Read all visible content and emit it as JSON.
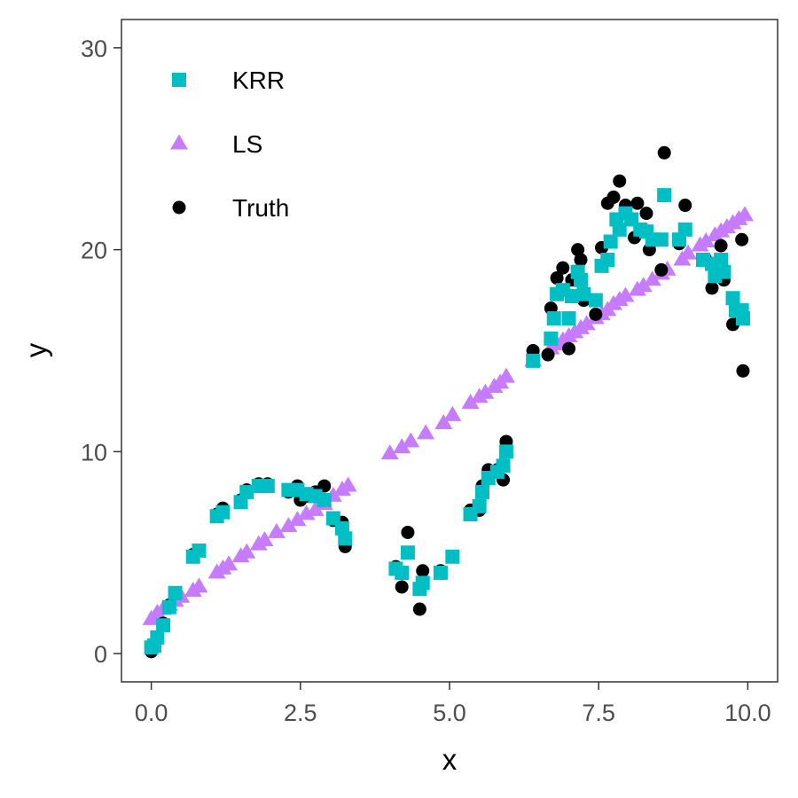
{
  "chart_data": {
    "type": "scatter",
    "title": "",
    "xlabel": "x",
    "ylabel": "y",
    "xlim": [
      -0.5,
      10.5
    ],
    "ylim": [
      -1.4,
      31.4
    ],
    "xticks": [
      0.0,
      2.5,
      5.0,
      7.5,
      10.0
    ],
    "xtick_labels": [
      "0.0",
      "2.5",
      "5.0",
      "7.5",
      "10.0"
    ],
    "yticks": [
      0,
      10,
      20,
      30
    ],
    "ytick_labels": [
      "0",
      "10",
      "20",
      "30"
    ],
    "grid": false,
    "legend": {
      "placement": "top-left",
      "entries": [
        "KRR",
        "LS",
        "Truth"
      ]
    },
    "series": [
      {
        "name": "KRR",
        "marker": "square",
        "color": "#00BFC4",
        "points": [
          [
            0.0,
            0.3
          ],
          [
            0.05,
            0.4
          ],
          [
            0.1,
            0.8
          ],
          [
            0.2,
            1.4
          ],
          [
            0.3,
            2.3
          ],
          [
            0.4,
            3.0
          ],
          [
            0.7,
            4.8
          ],
          [
            0.8,
            5.1
          ],
          [
            1.1,
            6.8
          ],
          [
            1.2,
            7.0
          ],
          [
            1.5,
            7.5
          ],
          [
            1.6,
            8.0
          ],
          [
            1.8,
            8.3
          ],
          [
            1.95,
            8.3
          ],
          [
            2.3,
            8.1
          ],
          [
            2.45,
            8.1
          ],
          [
            2.6,
            7.9
          ],
          [
            2.75,
            7.8
          ],
          [
            2.9,
            7.6
          ],
          [
            3.05,
            6.7
          ],
          [
            3.2,
            6.2
          ],
          [
            3.25,
            5.7
          ],
          [
            4.1,
            4.2
          ],
          [
            4.2,
            4.0
          ],
          [
            4.3,
            5.0
          ],
          [
            4.5,
            3.2
          ],
          [
            4.55,
            3.5
          ],
          [
            4.85,
            4.0
          ],
          [
            5.05,
            4.8
          ],
          [
            5.35,
            6.9
          ],
          [
            5.5,
            7.3
          ],
          [
            5.55,
            8.0
          ],
          [
            5.65,
            8.7
          ],
          [
            5.8,
            9.0
          ],
          [
            5.9,
            9.3
          ],
          [
            5.95,
            10.0
          ],
          [
            6.4,
            14.5
          ],
          [
            6.7,
            15.6
          ],
          [
            6.75,
            16.6
          ],
          [
            6.8,
            17.8
          ],
          [
            6.9,
            18.0
          ],
          [
            7.0,
            16.6
          ],
          [
            7.05,
            17.7
          ],
          [
            7.15,
            18.9
          ],
          [
            7.2,
            18.5
          ],
          [
            7.25,
            17.8
          ],
          [
            7.45,
            17.5
          ],
          [
            7.55,
            19.2
          ],
          [
            7.65,
            19.5
          ],
          [
            7.7,
            20.4
          ],
          [
            7.8,
            21.5
          ],
          [
            7.85,
            21.0
          ],
          [
            7.95,
            21.8
          ],
          [
            8.05,
            21.5
          ],
          [
            8.2,
            21.0
          ],
          [
            8.3,
            20.9
          ],
          [
            8.4,
            20.5
          ],
          [
            8.55,
            20.5
          ],
          [
            8.6,
            22.7
          ],
          [
            8.85,
            20.5
          ],
          [
            8.95,
            21.0
          ],
          [
            9.25,
            19.5
          ],
          [
            9.4,
            19.3
          ],
          [
            9.45,
            18.7
          ],
          [
            9.55,
            19.5
          ],
          [
            9.6,
            18.9
          ],
          [
            9.75,
            17.6
          ],
          [
            9.8,
            17.0
          ],
          [
            9.9,
            17.0
          ],
          [
            9.92,
            16.6
          ]
        ]
      },
      {
        "name": "LS",
        "marker": "triangle",
        "color": "#C77CFF",
        "points": [
          [
            0.0,
            1.7
          ],
          [
            0.1,
            2.0
          ],
          [
            0.2,
            2.2
          ],
          [
            0.3,
            2.4
          ],
          [
            0.4,
            2.6
          ],
          [
            0.5,
            2.8
          ],
          [
            0.7,
            3.1
          ],
          [
            0.8,
            3.3
          ],
          [
            1.1,
            4.0
          ],
          [
            1.2,
            4.2
          ],
          [
            1.3,
            4.4
          ],
          [
            1.5,
            4.8
          ],
          [
            1.6,
            5.0
          ],
          [
            1.8,
            5.4
          ],
          [
            1.9,
            5.6
          ],
          [
            2.1,
            6.0
          ],
          [
            2.3,
            6.3
          ],
          [
            2.45,
            6.6
          ],
          [
            2.6,
            6.9
          ],
          [
            2.75,
            7.1
          ],
          [
            2.9,
            7.4
          ],
          [
            3.05,
            7.8
          ],
          [
            3.2,
            8.1
          ],
          [
            3.3,
            8.3
          ],
          [
            4.0,
            9.9
          ],
          [
            4.2,
            10.2
          ],
          [
            4.35,
            10.5
          ],
          [
            4.6,
            10.9
          ],
          [
            4.9,
            11.4
          ],
          [
            5.05,
            11.8
          ],
          [
            5.35,
            12.4
          ],
          [
            5.5,
            12.7
          ],
          [
            5.6,
            12.9
          ],
          [
            5.75,
            13.2
          ],
          [
            5.85,
            13.4
          ],
          [
            5.95,
            13.7
          ],
          [
            6.4,
            14.5
          ],
          [
            6.7,
            15.1
          ],
          [
            6.8,
            15.3
          ],
          [
            6.9,
            15.5
          ],
          [
            7.0,
            15.7
          ],
          [
            7.1,
            15.9
          ],
          [
            7.2,
            16.1
          ],
          [
            7.3,
            16.3
          ],
          [
            7.45,
            16.6
          ],
          [
            7.55,
            16.8
          ],
          [
            7.65,
            17.0
          ],
          [
            7.75,
            17.3
          ],
          [
            7.85,
            17.5
          ],
          [
            7.95,
            17.7
          ],
          [
            8.15,
            18.0
          ],
          [
            8.25,
            18.2
          ],
          [
            8.4,
            18.5
          ],
          [
            8.55,
            18.8
          ],
          [
            8.65,
            19.0
          ],
          [
            8.9,
            19.5
          ],
          [
            9.0,
            19.8
          ],
          [
            9.2,
            20.2
          ],
          [
            9.3,
            20.4
          ],
          [
            9.45,
            20.7
          ],
          [
            9.55,
            20.9
          ],
          [
            9.65,
            21.1
          ],
          [
            9.75,
            21.3
          ],
          [
            9.85,
            21.5
          ],
          [
            9.95,
            21.7
          ]
        ]
      },
      {
        "name": "Truth",
        "marker": "circle",
        "color": "#000000",
        "points": [
          [
            0.0,
            0.1
          ],
          [
            0.05,
            0.4
          ],
          [
            0.1,
            0.8
          ],
          [
            0.2,
            1.5
          ],
          [
            0.3,
            2.4
          ],
          [
            0.4,
            3.0
          ],
          [
            0.7,
            4.9
          ],
          [
            0.8,
            5.1
          ],
          [
            1.1,
            6.9
          ],
          [
            1.2,
            7.2
          ],
          [
            1.5,
            7.6
          ],
          [
            1.6,
            8.1
          ],
          [
            1.8,
            8.4
          ],
          [
            1.95,
            8.4
          ],
          [
            2.3,
            8.0
          ],
          [
            2.45,
            8.3
          ],
          [
            2.5,
            7.6
          ],
          [
            2.6,
            7.8
          ],
          [
            2.75,
            8.0
          ],
          [
            2.9,
            8.3
          ],
          [
            3.05,
            6.6
          ],
          [
            3.2,
            6.5
          ],
          [
            3.25,
            5.3
          ],
          [
            4.1,
            4.3
          ],
          [
            4.2,
            3.3
          ],
          [
            4.3,
            6.0
          ],
          [
            4.5,
            2.2
          ],
          [
            4.55,
            4.1
          ],
          [
            4.85,
            4.1
          ],
          [
            5.05,
            4.8
          ],
          [
            5.35,
            7.1
          ],
          [
            5.5,
            7.1
          ],
          [
            5.55,
            8.3
          ],
          [
            5.65,
            9.1
          ],
          [
            5.8,
            9.1
          ],
          [
            5.9,
            8.6
          ],
          [
            5.95,
            10.5
          ],
          [
            6.4,
            15.0
          ],
          [
            6.65,
            14.8
          ],
          [
            6.7,
            17.1
          ],
          [
            6.8,
            18.6
          ],
          [
            6.9,
            19.1
          ],
          [
            7.0,
            15.1
          ],
          [
            7.05,
            18.5
          ],
          [
            7.15,
            20.0
          ],
          [
            7.2,
            19.5
          ],
          [
            7.25,
            17.5
          ],
          [
            7.45,
            16.8
          ],
          [
            7.55,
            20.1
          ],
          [
            7.65,
            22.3
          ],
          [
            7.75,
            22.6
          ],
          [
            7.85,
            23.4
          ],
          [
            7.95,
            22.2
          ],
          [
            8.1,
            20.6
          ],
          [
            8.15,
            22.3
          ],
          [
            8.3,
            21.8
          ],
          [
            8.35,
            20.0
          ],
          [
            8.45,
            20.5
          ],
          [
            8.55,
            19.0
          ],
          [
            8.6,
            24.8
          ],
          [
            8.85,
            20.3
          ],
          [
            8.95,
            22.2
          ],
          [
            9.3,
            19.5
          ],
          [
            9.4,
            18.1
          ],
          [
            9.5,
            19.0
          ],
          [
            9.55,
            20.2
          ],
          [
            9.6,
            18.5
          ],
          [
            9.75,
            16.3
          ],
          [
            9.85,
            16.9
          ],
          [
            9.9,
            20.5
          ],
          [
            9.92,
            14.0
          ]
        ]
      }
    ]
  }
}
